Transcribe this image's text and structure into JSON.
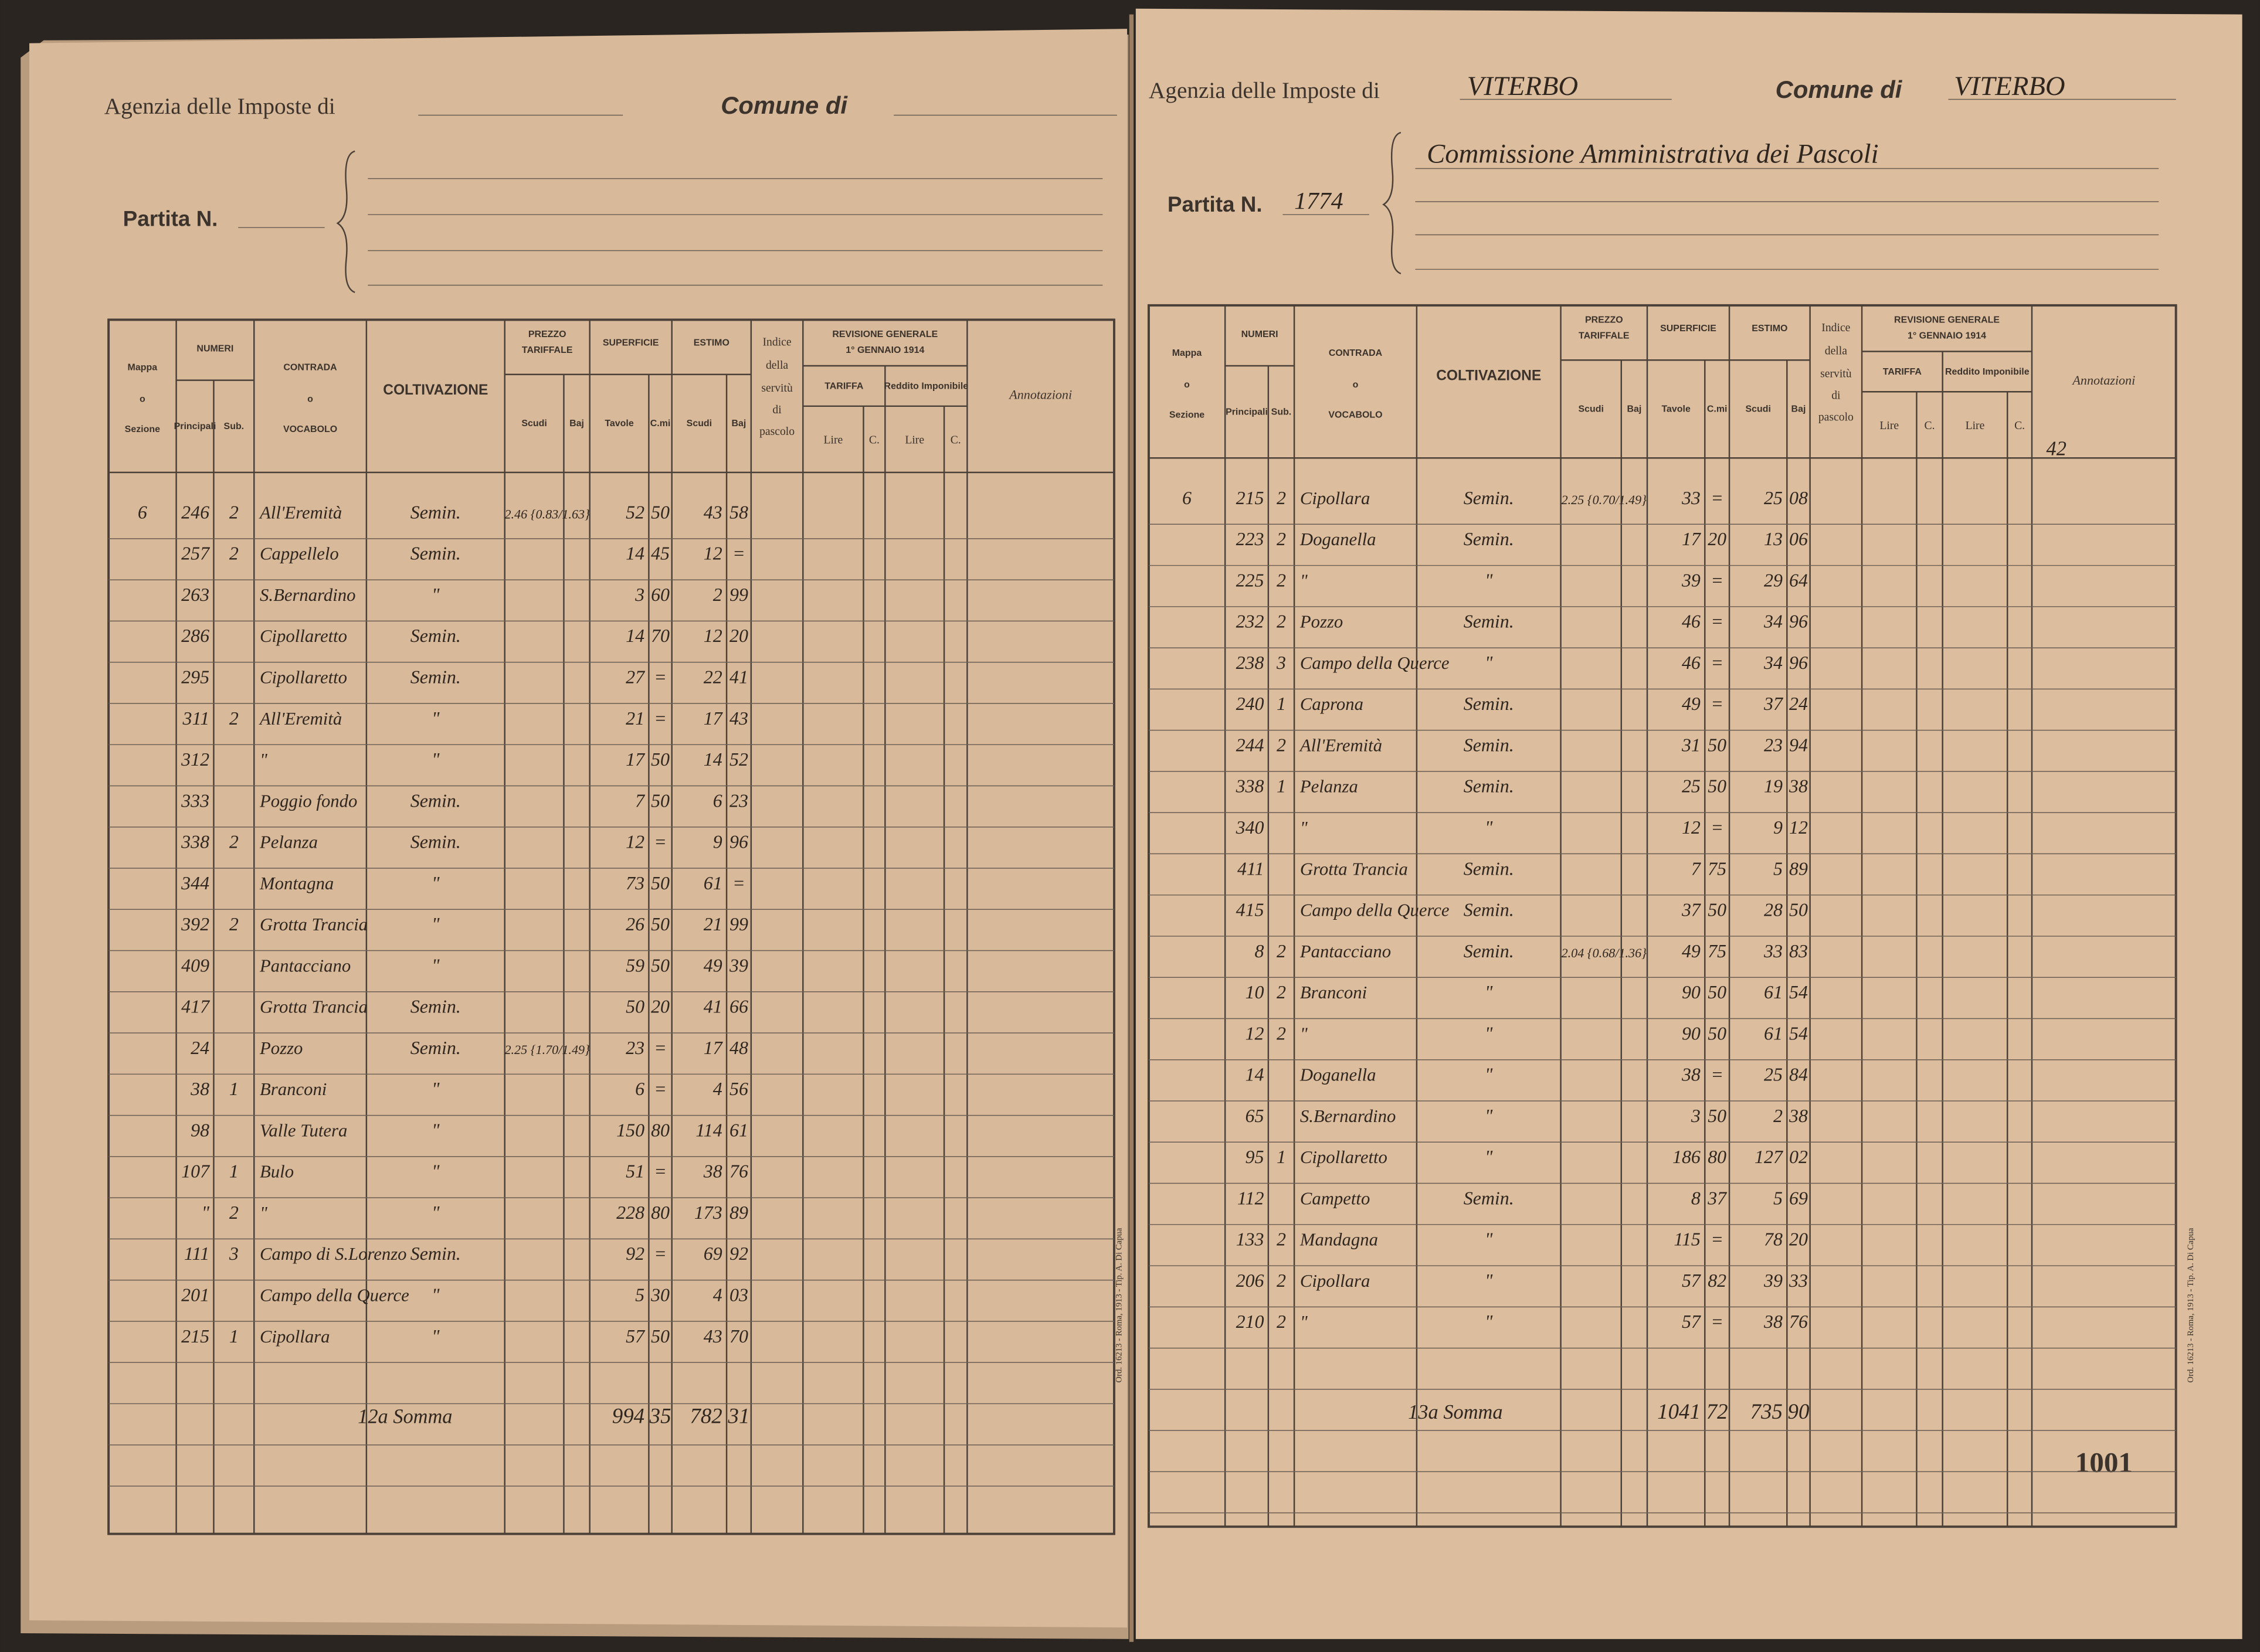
{
  "table_header": {
    "mappa": "Mappa",
    "o1": "o",
    "sezione": "Sezione",
    "numeri": "NUMERI",
    "principali": "Principali",
    "sub": "Sub.",
    "contrada": "CONTRADA",
    "o2": "o",
    "vocabolo": "VOCABOLO",
    "coltivazione": "COLTIVAZIONE",
    "prezzo": "PREZZO",
    "tariffale": "TARIFFALE",
    "scudi": "Scudi",
    "baj": "Baj",
    "superficie": "SUPERFICIE",
    "tavole": "Tavole",
    "cmi": "C.mi",
    "estimo": "ESTIMO",
    "scudi2": "Scudi",
    "baj2": "Baj",
    "indice": "Indice",
    "della": "della",
    "servitu": "servitù",
    "di": "di",
    "pascolo": "pascolo",
    "revisione": "REVISIONE GENERALE",
    "data": "1° GENNAIO 1914",
    "tariffa": "TARIFFA",
    "reddito": "Reddito Imponibile",
    "lire": "Lire",
    "c": "C.",
    "lire2": "Lire",
    "c2": "C.",
    "annotazioni": "Annotazioni"
  },
  "left_page": {
    "agency_label": "Agenzia delle Imposte di",
    "comune_label": "Comune di",
    "partita_label": "Partita N.",
    "rows": [
      [
        "6",
        "246",
        "2",
        "All'Eremità",
        "Semin.",
        "2.46 {0.83/1.63}",
        "52",
        "50",
        "43",
        "58"
      ],
      [
        null,
        "257",
        "2",
        "Cappellelo",
        "Semin.",
        null,
        "14",
        "45",
        "12",
        "="
      ],
      [
        null,
        "263",
        null,
        "S.Bernardino",
        "\"",
        null,
        "3",
        "60",
        "2",
        "99"
      ],
      [
        null,
        "286",
        null,
        "Cipollaretto",
        "Semin.",
        null,
        "14",
        "70",
        "12",
        "20"
      ],
      [
        null,
        "295",
        null,
        "Cipollaretto",
        "Semin.",
        null,
        "27",
        "=",
        "22",
        "41"
      ],
      [
        null,
        "311",
        "2",
        "All'Eremità",
        "\"",
        null,
        "21",
        "=",
        "17",
        "43"
      ],
      [
        null,
        "312",
        null,
        "\"",
        "\"",
        null,
        "17",
        "50",
        "14",
        "52"
      ],
      [
        null,
        "333",
        null,
        "Poggio fondo",
        "Semin.",
        null,
        "7",
        "50",
        "6",
        "23"
      ],
      [
        null,
        "338",
        "2",
        "Pelanza",
        "Semin.",
        null,
        "12",
        "=",
        "9",
        "96"
      ],
      [
        null,
        "344",
        null,
        "Montagna",
        "\"",
        null,
        "73",
        "50",
        "61",
        "="
      ],
      [
        null,
        "392",
        "2",
        "Grotta Trancia",
        "\"",
        null,
        "26",
        "50",
        "21",
        "99"
      ],
      [
        null,
        "409",
        null,
        "Pantacciano",
        "\"",
        null,
        "59",
        "50",
        "49",
        "39"
      ],
      [
        null,
        "417",
        null,
        "Grotta Trancia",
        "Semin.",
        null,
        "50",
        "20",
        "41",
        "66"
      ],
      [
        null,
        "24",
        null,
        "Pozzo",
        "Semin.",
        "2.25 {1.70/1.49}",
        "23",
        "=",
        "17",
        "48"
      ],
      [
        null,
        "38",
        "1",
        "Branconi",
        "\"",
        null,
        "6",
        "=",
        "4",
        "56"
      ],
      [
        null,
        "98",
        null,
        "Valle Tutera",
        "\"",
        null,
        "150",
        "80",
        "114",
        "61"
      ],
      [
        null,
        "107",
        "1",
        "Bulo",
        "\"",
        null,
        "51",
        "=",
        "38",
        "76"
      ],
      [
        null,
        "\"",
        "2",
        "\"",
        "\"",
        null,
        "228",
        "80",
        "173",
        "89"
      ],
      [
        null,
        "111",
        "3",
        "Campo di S.Lorenzo",
        "Semin.",
        null,
        "92",
        "=",
        "69",
        "92"
      ],
      [
        null,
        "201",
        null,
        "Campo della Querce",
        "\"",
        null,
        "5",
        "30",
        "4",
        "03"
      ],
      [
        null,
        "215",
        "1",
        "Cipollara",
        "\"",
        null,
        "57",
        "50",
        "43",
        "70"
      ]
    ],
    "total": {
      "label": "12a Somma",
      "sup_tav": "994",
      "sup_cmi": "35",
      "est_scudi": "782",
      "est_baj": "31"
    },
    "printer_note": "Ord. 16213 - Roma, 1913 - Tip. A. Di Capua"
  },
  "right_page": {
    "agency_label": "Agenzia delle Imposte di",
    "agency": "VITERBO",
    "comune_label": "Comune di",
    "comune": "VITERBO",
    "partita_label": "Partita N.",
    "partita": "1774",
    "owner": "Commissione Amministrativa dei Pascoli",
    "annotation": "42",
    "rows": [
      [
        "6",
        "215",
        "2",
        "Cipollara",
        "Semin.",
        "2.25 {0.70/1.49}",
        "33",
        "=",
        "25",
        "08"
      ],
      [
        null,
        "223",
        "2",
        "Doganella",
        "Semin.",
        null,
        "17",
        "20",
        "13",
        "06"
      ],
      [
        null,
        "225",
        "2",
        "\"",
        "\"",
        null,
        "39",
        "=",
        "29",
        "64"
      ],
      [
        null,
        "232",
        "2",
        "Pozzo",
        "Semin.",
        null,
        "46",
        "=",
        "34",
        "96"
      ],
      [
        null,
        "238",
        "3",
        "Campo della Querce",
        "\"",
        null,
        "46",
        "=",
        "34",
        "96"
      ],
      [
        null,
        "240",
        "1",
        "Caprona",
        "Semin.",
        null,
        "49",
        "=",
        "37",
        "24"
      ],
      [
        null,
        "244",
        "2",
        "All'Eremità",
        "Semin.",
        null,
        "31",
        "50",
        "23",
        "94"
      ],
      [
        null,
        "338",
        "1",
        "Pelanza",
        "Semin.",
        null,
        "25",
        "50",
        "19",
        "38"
      ],
      [
        null,
        "340",
        null,
        "\"",
        "\"",
        null,
        "12",
        "=",
        "9",
        "12"
      ],
      [
        null,
        "411",
        null,
        "Grotta Trancia",
        "Semin.",
        null,
        "7",
        "75",
        "5",
        "89"
      ],
      [
        null,
        "415",
        null,
        "Campo della Querce",
        "Semin.",
        null,
        "37",
        "50",
        "28",
        "50"
      ],
      [
        null,
        "8",
        "2",
        "Pantacciano",
        "Semin.",
        "2.04 {0.68/1.36}",
        "49",
        "75",
        "33",
        "83"
      ],
      [
        null,
        "10",
        "2",
        "Branconi",
        "\"",
        null,
        "90",
        "50",
        "61",
        "54"
      ],
      [
        null,
        "12",
        "2",
        "\"",
        "\"",
        null,
        "90",
        "50",
        "61",
        "54"
      ],
      [
        null,
        "14",
        null,
        "Doganella",
        "\"",
        null,
        "38",
        "=",
        "25",
        "84"
      ],
      [
        null,
        "65",
        null,
        "S.Bernardino",
        "\"",
        null,
        "3",
        "50",
        "2",
        "38"
      ],
      [
        null,
        "95",
        "1",
        "Cipollaretto",
        "\"",
        null,
        "186",
        "80",
        "127",
        "02"
      ],
      [
        null,
        "112",
        null,
        "Campetto",
        "Semin.",
        null,
        "8",
        "37",
        "5",
        "69"
      ],
      [
        null,
        "133",
        "2",
        "Mandagna",
        "\"",
        null,
        "115",
        "=",
        "78",
        "20"
      ],
      [
        null,
        "206",
        "2",
        "Cipollara",
        "\"",
        null,
        "57",
        "82",
        "39",
        "33"
      ],
      [
        null,
        "210",
        "2",
        "\"",
        "\"",
        null,
        "57",
        "=",
        "38",
        "76"
      ]
    ],
    "total": {
      "label": "13a Somma",
      "sup_tav": "1041",
      "sup_cmi": "72",
      "est_scudi": "735",
      "est_baj": "90"
    },
    "page_number": "1001",
    "printer_note": "Ord. 16213 - Roma, 1913 - Tip. A. Di Capua"
  }
}
